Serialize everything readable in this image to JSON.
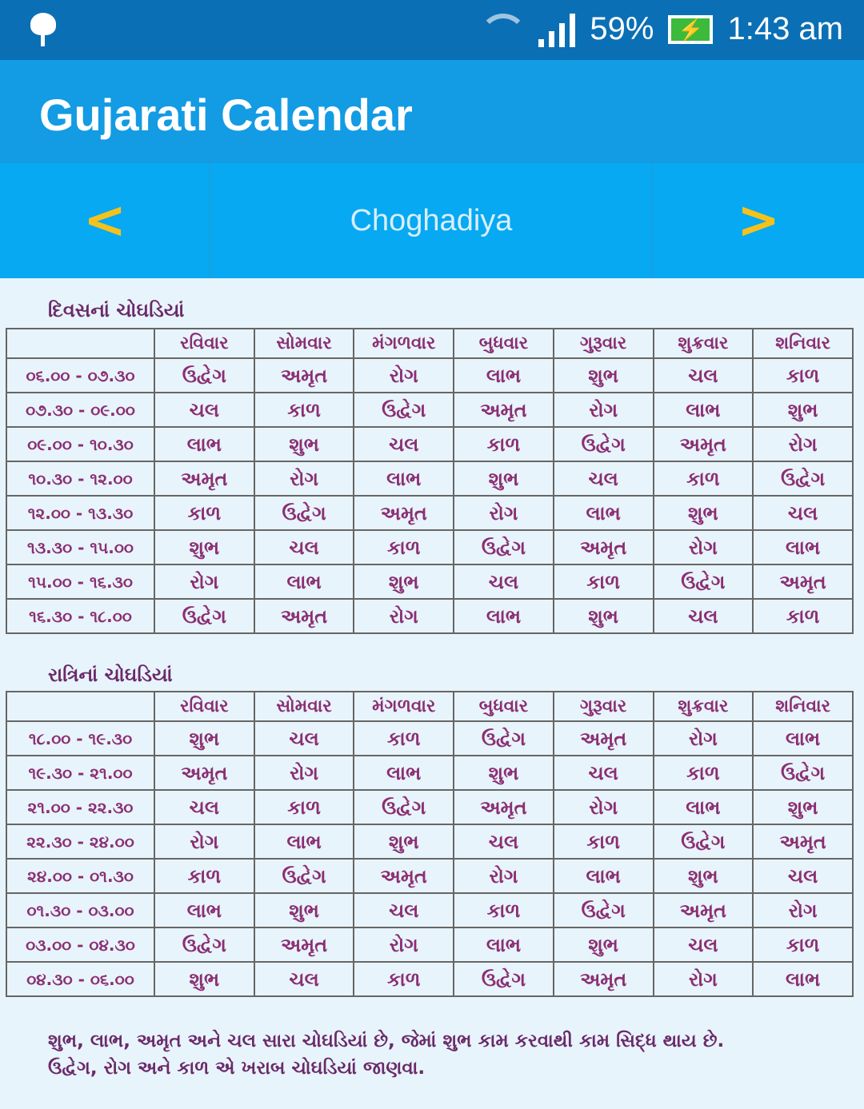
{
  "status": {
    "battery": "59%",
    "time": "1:43 am"
  },
  "app": {
    "title": "Gujarati Calendar"
  },
  "nav": {
    "prev": "<",
    "title": "Choghadiya",
    "next": ">"
  },
  "days": [
    "રવિવાર",
    "સોમવાર",
    "મંગળવાર",
    "બુધવાર",
    "ગુરૂવાર",
    "શુક્રવાર",
    "શનિવાર"
  ],
  "day": {
    "title": "દિવસનાં ચોઘડિયાં",
    "rows": [
      {
        "time": "૦૬.૦૦ - ૦૭.૩૦",
        "cells": [
          "ઉદ્વેગ",
          "અમૃત",
          "રોગ",
          "લાભ",
          "શુભ",
          "ચલ",
          "કાળ"
        ]
      },
      {
        "time": "૦૭.૩૦ - ૦૯.૦૦",
        "cells": [
          "ચલ",
          "કાળ",
          "ઉદ્વેગ",
          "અમૃત",
          "રોગ",
          "લાભ",
          "શુભ"
        ]
      },
      {
        "time": "૦૯.૦૦ - ૧૦.૩૦",
        "cells": [
          "લાભ",
          "શુભ",
          "ચલ",
          "કાળ",
          "ઉદ્વેગ",
          "અમૃત",
          "રોગ"
        ]
      },
      {
        "time": "૧૦.૩૦ - ૧૨.૦૦",
        "cells": [
          "અમૃત",
          "રોગ",
          "લાભ",
          "શુભ",
          "ચલ",
          "કાળ",
          "ઉદ્વેગ"
        ]
      },
      {
        "time": "૧૨.૦૦ - ૧૩.૩૦",
        "cells": [
          "કાળ",
          "ઉદ્વેગ",
          "અમૃત",
          "રોગ",
          "લાભ",
          "શુભ",
          "ચલ"
        ]
      },
      {
        "time": "૧૩.૩૦ - ૧૫.૦૦",
        "cells": [
          "શુભ",
          "ચલ",
          "કાળ",
          "ઉદ્વેગ",
          "અમૃત",
          "રોગ",
          "લાભ"
        ]
      },
      {
        "time": "૧૫.૦૦ - ૧૬.૩૦",
        "cells": [
          "રોગ",
          "લાભ",
          "શુભ",
          "ચલ",
          "કાળ",
          "ઉદ્વેગ",
          "અમૃત"
        ]
      },
      {
        "time": "૧૬.૩૦ - ૧૮.૦૦",
        "cells": [
          "ઉદ્વેગ",
          "અમૃત",
          "રોગ",
          "લાભ",
          "શુભ",
          "ચલ",
          "કાળ"
        ]
      }
    ]
  },
  "night": {
    "title": "રાત્રિનાં ચોઘડિયાં",
    "rows": [
      {
        "time": "૧૮.૦૦ - ૧૯.૩૦",
        "cells": [
          "શુભ",
          "ચલ",
          "કાળ",
          "ઉદ્વેગ",
          "અમૃત",
          "રોગ",
          "લાભ"
        ]
      },
      {
        "time": "૧૯.૩૦ - ૨૧.૦૦",
        "cells": [
          "અમૃત",
          "રોગ",
          "લાભ",
          "શુભ",
          "ચલ",
          "કાળ",
          "ઉદ્વેગ"
        ]
      },
      {
        "time": "૨૧.૦૦ - ૨૨.૩૦",
        "cells": [
          "ચલ",
          "કાળ",
          "ઉદ્વેગ",
          "અમૃત",
          "રોગ",
          "લાભ",
          "શુભ"
        ]
      },
      {
        "time": "૨૨.૩૦ - ૨૪.૦૦",
        "cells": [
          "રોગ",
          "લાભ",
          "શુભ",
          "ચલ",
          "કાળ",
          "ઉદ્વેગ",
          "અમૃત"
        ]
      },
      {
        "time": "૨૪.૦૦ - ૦૧.૩૦",
        "cells": [
          "કાળ",
          "ઉદ્વેગ",
          "અમૃત",
          "રોગ",
          "લાભ",
          "શુભ",
          "ચલ"
        ]
      },
      {
        "time": "૦૧.૩૦ - ૦૩.૦૦",
        "cells": [
          "લાભ",
          "શુભ",
          "ચલ",
          "કાળ",
          "ઉદ્વેગ",
          "અમૃત",
          "રોગ"
        ]
      },
      {
        "time": "૦૩.૦૦ - ૦૪.૩૦",
        "cells": [
          "ઉદ્વેગ",
          "અમૃત",
          "રોગ",
          "લાભ",
          "શુભ",
          "ચલ",
          "કાળ"
        ]
      },
      {
        "time": "૦૪.૩૦ - ૦૬.૦૦",
        "cells": [
          "શુભ",
          "ચલ",
          "કાળ",
          "ઉદ્વેગ",
          "અમૃત",
          "રોગ",
          "લાભ"
        ]
      }
    ]
  },
  "footer": {
    "line1": "શુભ, લાભ, અમૃત અને ચલ સારા ચોઘડિયાં છે, જેમાં શુભ કામ કરવાથી કામ સિદ્ધ થાય છે.",
    "line2": "ઉદ્વેગ, રોગ અને કાળ એ ખરાબ ચોઘડિયાં જાણવા."
  }
}
